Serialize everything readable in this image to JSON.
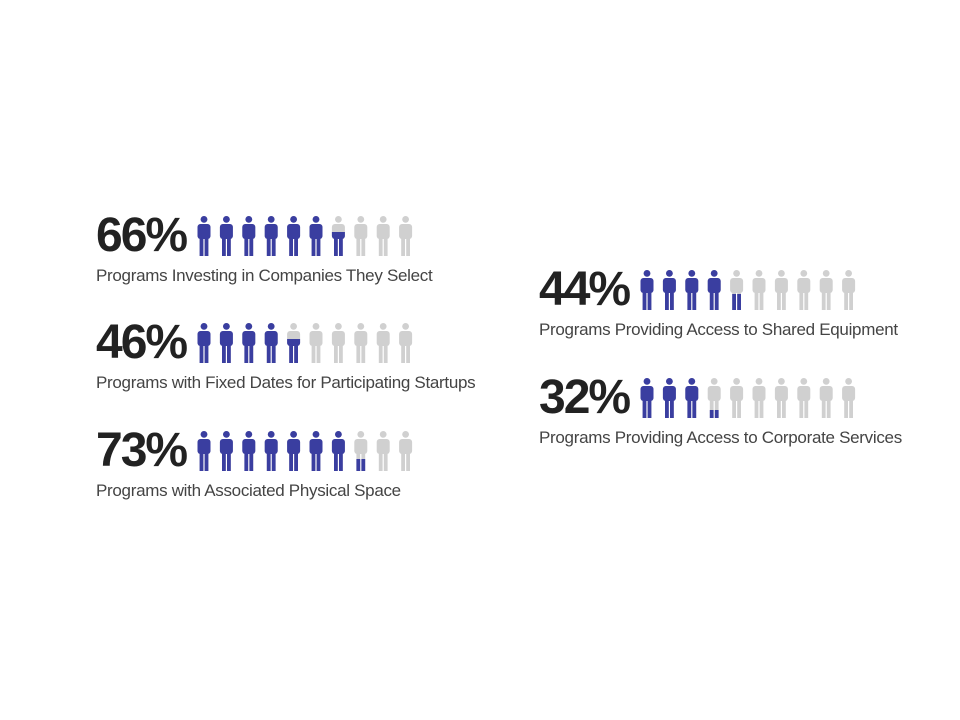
{
  "colors": {
    "filled": "#3a3ea0",
    "empty": "#d0d0d0",
    "text": "#222222",
    "label": "#444444"
  },
  "icon": "person-icon",
  "stats": [
    {
      "value": "66%",
      "label": "Programs Investing in Companies They Select"
    },
    {
      "value": "46%",
      "label": "Programs with Fixed Dates for Participating Startups"
    },
    {
      "value": "73%",
      "label": "Programs with Associated Physical Space"
    },
    {
      "value": "44%",
      "label": "Programs Providing Access to Shared Equipment"
    },
    {
      "value": "32%",
      "label": "Programs Providing Access to Corporate Services"
    }
  ],
  "chart_data": {
    "type": "pictogram",
    "icons_per_row": 10,
    "series": [
      {
        "label": "Programs Investing in Companies They Select",
        "percent": 66
      },
      {
        "label": "Programs with Fixed Dates for Participating Startups",
        "percent": 46
      },
      {
        "label": "Programs with Associated Physical Space",
        "percent": 73
      },
      {
        "label": "Programs Providing Access to Shared Equipment",
        "percent": 44
      },
      {
        "label": "Programs Providing Access to Corporate Services",
        "percent": 32
      }
    ]
  }
}
